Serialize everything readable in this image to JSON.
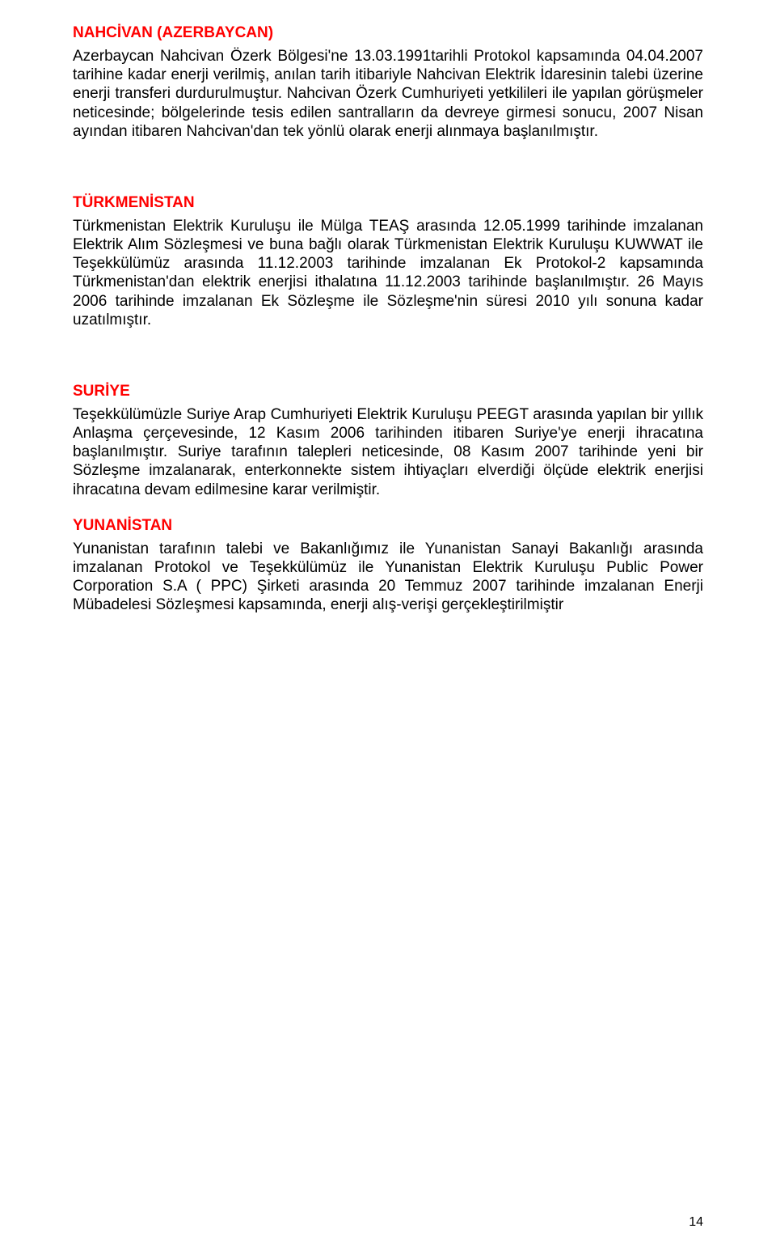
{
  "sections": [
    {
      "heading": "NAHCİVAN (AZERBAYCAN)",
      "paragraphs": [
        "Azerbaycan Nahcivan Özerk Bölgesi'ne 13.03.1991tarihli Protokol kapsamında 04.04.2007 tarihine kadar enerji verilmiş, anılan tarih itibariyle Nahcivan Elektrik İdaresinin talebi üzerine enerji transferi durdurulmuştur. Nahcivan Özerk Cumhuriyeti yetkilileri ile yapılan görüşmeler neticesinde; bölgelerinde tesis edilen santralların da devreye girmesi sonucu, 2007 Nisan ayından itibaren Nahcivan'dan tek yönlü olarak enerji alınmaya başlanılmıştır."
      ]
    },
    {
      "heading": "TÜRKMENİSTAN",
      "paragraphs": [
        "Türkmenistan Elektrik Kuruluşu ile Mülga TEAŞ arasında 12.05.1999 tarihinde imzalanan Elektrik Alım Sözleşmesi ve buna bağlı olarak Türkmenistan Elektrik Kuruluşu KUWWAT ile Teşekkülümüz arasında 11.12.2003 tarihinde imzalanan Ek Protokol-2 kapsamında Türkmenistan'dan elektrik enerjisi ithalatına 11.12.2003 tarihinde başlanılmıştır. 26 Mayıs 2006 tarihinde imzalanan Ek Sözleşme ile Sözleşme'nin süresi 2010 yılı sonuna kadar uzatılmıştır."
      ]
    },
    {
      "heading": "SURİYE",
      "paragraphs": [
        "Teşekkülümüzle Suriye Arap Cumhuriyeti Elektrik Kuruluşu PEEGT arasında yapılan bir yıllık Anlaşma çerçevesinde, 12 Kasım 2006 tarihinden itibaren Suriye'ye enerji ihracatına başlanılmıştır. Suriye tarafının talepleri neticesinde, 08 Kasım 2007 tarihinde yeni bir Sözleşme imzalanarak, enterkonnekte sistem ihtiyaçları elverdiği ölçüde elektrik enerjisi ihracatına devam edilmesine karar verilmiştir."
      ]
    },
    {
      "heading": "YUNANİSTAN",
      "paragraphs": [
        "Yunanistan tarafının talebi ve Bakanlığımız ile Yunanistan Sanayi Bakanlığı arasında imzalanan Protokol ve Teşekkülümüz ile Yunanistan Elektrik Kuruluşu Public Power Corporation S.A ( PPC) Şirketi arasında 20 Temmuz 2007 tarihinde imzalanan Enerji Mübadelesi Sözleşmesi kapsamında, enerji alış-verişi gerçekleştirilmiştir"
      ]
    }
  ],
  "pageNumber": "14",
  "styles": {
    "heading_color": "#ff0000",
    "text_color": "#000000",
    "background_color": "#ffffff",
    "font_size_body": 19,
    "font_size_page_number": 16
  }
}
